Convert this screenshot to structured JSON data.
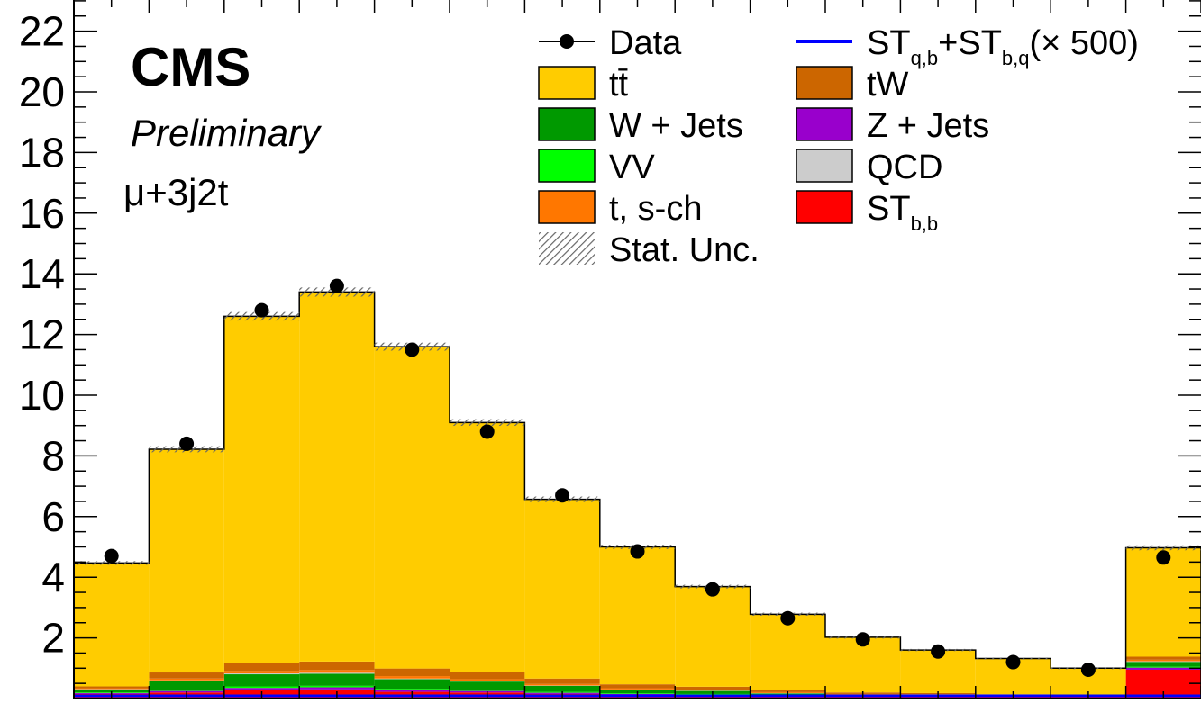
{
  "chart_data": {
    "type": "bar",
    "stacked": true,
    "x": [
      1,
      2,
      3,
      4,
      5,
      6,
      7,
      8,
      9,
      10,
      11,
      12,
      13,
      14,
      15
    ],
    "ylim": [
      0,
      22.5
    ],
    "yticks": [
      "2",
      "4",
      "6",
      "8",
      "10",
      "12",
      "14",
      "16",
      "18",
      "20",
      "22"
    ],
    "grid": false,
    "legend_position": "top-right",
    "annotations": {
      "experiment": "CMS",
      "status": "Preliminary",
      "channel": "μ+3j2t"
    },
    "series": [
      {
        "name": "ST_b,b",
        "key": "stbb",
        "color": "#ff0000",
        "values": [
          0.15,
          0.2,
          0.28,
          0.3,
          0.22,
          0.2,
          0.15,
          0.12,
          0.1,
          0.08,
          0.05,
          0.05,
          0.05,
          0.05,
          0.95
        ]
      },
      {
        "name": "Z + Jets",
        "key": "zjets",
        "color": "#9900cc",
        "values": [
          0.03,
          0.05,
          0.07,
          0.07,
          0.06,
          0.05,
          0.04,
          0.03,
          0.03,
          0.02,
          0.02,
          0.02,
          0.01,
          0.01,
          0.07
        ]
      },
      {
        "name": "VV",
        "key": "vv",
        "color": "#00ff00",
        "values": [
          0.02,
          0.03,
          0.05,
          0.05,
          0.04,
          0.03,
          0.03,
          0.02,
          0.02,
          0.01,
          0.01,
          0.01,
          0.01,
          0.01,
          0.03
        ]
      },
      {
        "name": "W + Jets",
        "key": "wjets",
        "color": "#009900",
        "values": [
          0.1,
          0.3,
          0.4,
          0.4,
          0.32,
          0.28,
          0.2,
          0.12,
          0.1,
          0.06,
          0.05,
          0.04,
          0.03,
          0.02,
          0.16
        ]
      },
      {
        "name": "QCD",
        "key": "qcd",
        "color": "#cccccc",
        "values": [
          0.01,
          0.02,
          0.03,
          0.03,
          0.02,
          0.02,
          0.01,
          0.01,
          0.01,
          0.01,
          0.0,
          0.0,
          0.0,
          0.0,
          0.02
        ]
      },
      {
        "name": "t, s-ch",
        "key": "tsch",
        "color": "#ff7700",
        "values": [
          0.03,
          0.06,
          0.08,
          0.09,
          0.08,
          0.06,
          0.05,
          0.04,
          0.03,
          0.03,
          0.02,
          0.02,
          0.01,
          0.01,
          0.05
        ]
      },
      {
        "name": "tW",
        "key": "tw",
        "color": "#cc6600",
        "values": [
          0.06,
          0.2,
          0.25,
          0.28,
          0.25,
          0.23,
          0.18,
          0.13,
          0.1,
          0.07,
          0.05,
          0.04,
          0.03,
          0.02,
          0.1
        ]
      },
      {
        "name": "tt̄",
        "key": "ttbar",
        "color": "#ffcc00",
        "values": [
          4.07,
          7.36,
          11.44,
          12.18,
          10.61,
          8.23,
          5.91,
          4.53,
          3.3,
          2.5,
          1.82,
          1.42,
          1.18,
          0.88,
          3.59
        ]
      }
    ],
    "data": {
      "name": "Data",
      "values": [
        4.7,
        8.4,
        12.8,
        13.6,
        11.5,
        8.8,
        6.7,
        4.85,
        3.6,
        2.65,
        1.95,
        1.55,
        1.2,
        0.95,
        4.65
      ]
    },
    "signal": {
      "name": "ST_q,b+ST_b,q(× 500)",
      "color": "#0000ff"
    },
    "uncertainty": {
      "name": "Stat. Unc.",
      "values": [
        0.06,
        0.1,
        0.14,
        0.15,
        0.13,
        0.11,
        0.09,
        0.07,
        0.06,
        0.05,
        0.04,
        0.035,
        0.03,
        0.03,
        0.08
      ]
    },
    "legend": [
      {
        "key": "data",
        "type": "marker",
        "label": "Data",
        "sub": ""
      },
      {
        "key": "signal",
        "type": "line",
        "color": "#0000ff",
        "label": "ST",
        "sub": "q,b",
        "label2": "+ST",
        "sub2": "b,q",
        "label3": "(× 500)"
      },
      {
        "key": "ttbar",
        "type": "box",
        "color": "#ffcc00",
        "label": "tt̄",
        "sub": ""
      },
      {
        "key": "tw",
        "type": "box",
        "color": "#cc6600",
        "label": "tW",
        "sub": ""
      },
      {
        "key": "wjets",
        "type": "box",
        "color": "#009900",
        "label": "W + Jets",
        "sub": ""
      },
      {
        "key": "zjets",
        "type": "box",
        "color": "#9900cc",
        "label": "Z + Jets",
        "sub": ""
      },
      {
        "key": "vv",
        "type": "box",
        "color": "#00ff00",
        "label": "VV",
        "sub": ""
      },
      {
        "key": "qcd",
        "type": "box",
        "color": "#cccccc",
        "label": "QCD",
        "sub": ""
      },
      {
        "key": "tsch",
        "type": "box",
        "color": "#ff7700",
        "label": "t, s-ch",
        "sub": ""
      },
      {
        "key": "stbb",
        "type": "box",
        "color": "#ff0000",
        "label": "ST",
        "sub": "b,b"
      },
      {
        "key": "unc",
        "type": "hatch",
        "label": "Stat. Unc.",
        "sub": ""
      }
    ]
  }
}
